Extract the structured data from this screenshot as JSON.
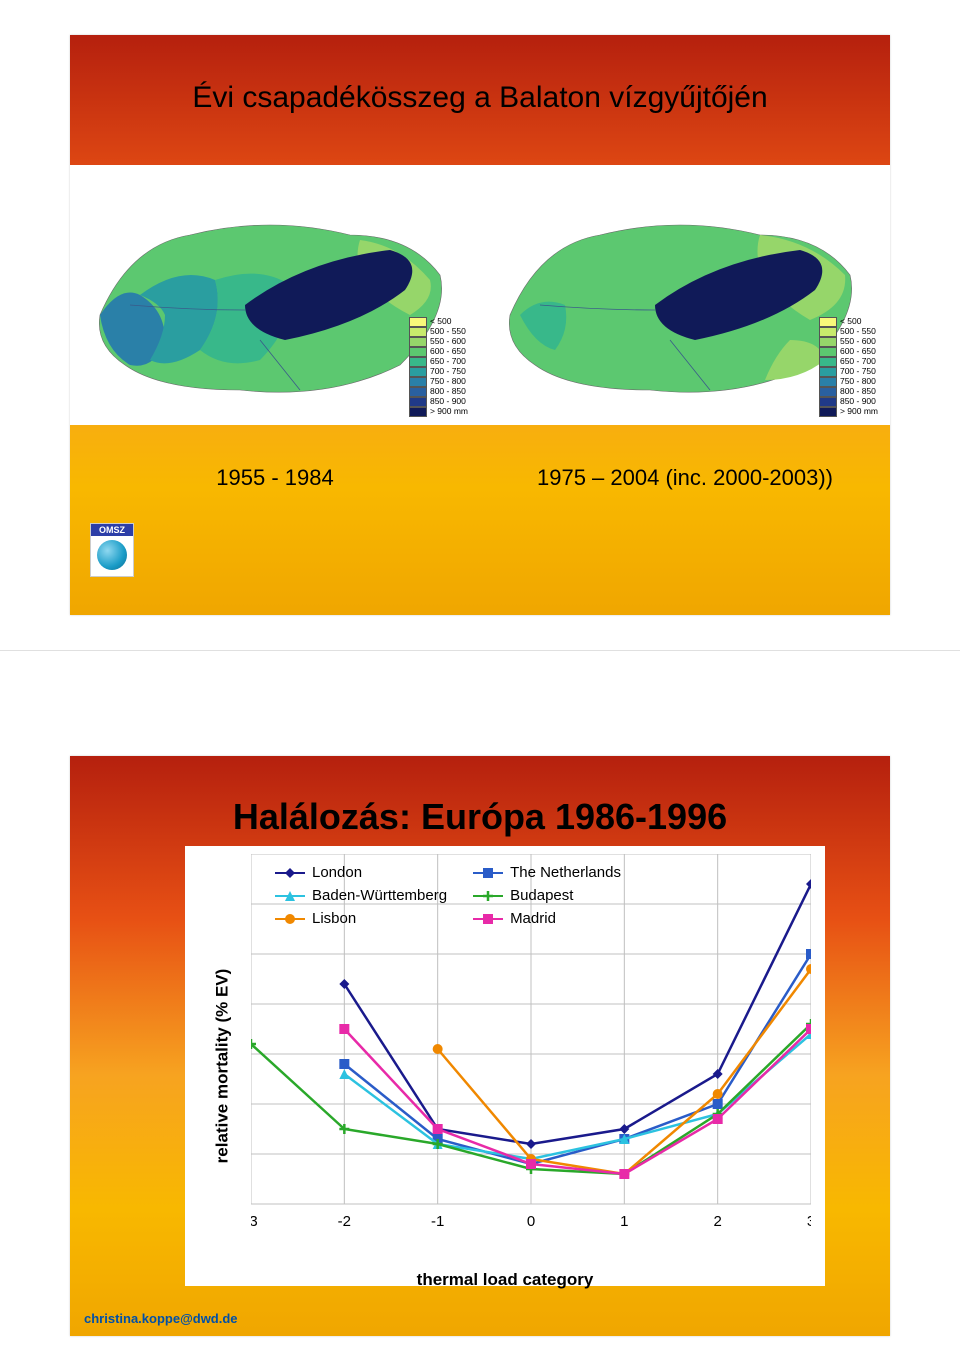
{
  "slide1": {
    "title": "Évi csapadékösszeg a Balaton vízgyűjtőjén",
    "period_left": "1955 - 1984",
    "period_right": "1975 – 2004 (inc. 2000-2003))",
    "logo_text": "OMSZ",
    "legend": {
      "labels": [
        "< 500",
        "500 - 550",
        "550 - 600",
        "600 - 650",
        "650 - 700",
        "700 - 750",
        "750 - 800",
        "800 - 850",
        "850 - 900",
        "> 900 mm"
      ],
      "colors": [
        "#f8f87a",
        "#c8ea6c",
        "#96d66a",
        "#5cc870",
        "#38b88a",
        "#2a9ea0",
        "#2a80a8",
        "#2a60a0",
        "#203a88",
        "#101a58"
      ]
    }
  },
  "slide2": {
    "title": "Halálozás: Európa 1986-1996",
    "footer": "christina.koppe@dwd.de",
    "chart": {
      "type": "line",
      "xlabel": "thermal load category",
      "ylabel": "relative mortality (% EV)",
      "xlim": [
        -3,
        3
      ],
      "xtick_step": 1,
      "ylim": [
        95,
        130
      ],
      "ytick_step": 5,
      "background_color": "#ffffff",
      "grid_color": "#c0c0c0",
      "label_fontsize": 17,
      "tick_fontsize": 15,
      "line_width": 2.5,
      "marker_size": 10,
      "series": [
        {
          "name": "London",
          "color": "#1a1a8c",
          "marker": "diamond",
          "x": [
            -2,
            -1,
            0,
            1,
            2,
            3
          ],
          "y": [
            117,
            102.5,
            101,
            102.5,
            108,
            127
          ]
        },
        {
          "name": "The Netherlands",
          "color": "#2a5cc8",
          "marker": "square",
          "x": [
            -2,
            -1,
            0,
            1,
            2,
            3
          ],
          "y": [
            109,
            101.5,
            99,
            101.5,
            105,
            120
          ]
        },
        {
          "name": "Baden-Württemberg",
          "color": "#2cc2e0",
          "marker": "triangle",
          "x": [
            -2,
            -1,
            0,
            1,
            2,
            3
          ],
          "y": [
            108,
            101,
            99.5,
            101.5,
            104,
            112
          ]
        },
        {
          "name": "Budapest",
          "color": "#2aa82a",
          "marker": "plus",
          "x": [
            -3,
            -2,
            -1,
            0,
            1,
            2,
            3
          ],
          "y": [
            111,
            102.5,
            101,
            98.5,
            98,
            104,
            113
          ]
        },
        {
          "name": "Lisbon",
          "color": "#f08800",
          "marker": "circle",
          "x": [
            -1,
            0,
            1,
            2,
            3
          ],
          "y": [
            110.5,
            99.5,
            98,
            106,
            118.5
          ]
        },
        {
          "name": "Madrid",
          "color": "#e82aa8",
          "marker": "squarefill",
          "x": [
            -2,
            -1,
            0,
            1,
            2,
            3
          ],
          "y": [
            112.5,
            102.5,
            99,
            98,
            103.5,
            112.5
          ]
        }
      ],
      "legend_layout": [
        [
          "London",
          "The Netherlands"
        ],
        [
          "Baden-Württemberg",
          "Budapest"
        ],
        [
          "Lisbon",
          "Madrid"
        ]
      ]
    }
  }
}
